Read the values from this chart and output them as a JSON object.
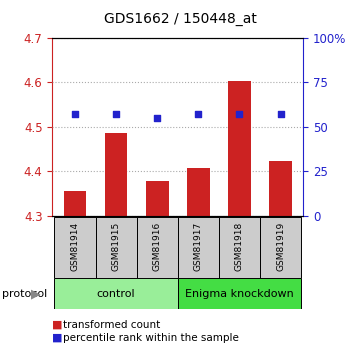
{
  "title": "GDS1662 / 150448_at",
  "samples": [
    "GSM81914",
    "GSM81915",
    "GSM81916",
    "GSM81917",
    "GSM81918",
    "GSM81919"
  ],
  "bar_values": [
    4.355,
    4.485,
    4.378,
    4.408,
    4.603,
    4.422
  ],
  "percentile_values": [
    57,
    57,
    55,
    57,
    57,
    57
  ],
  "ylim_left": [
    4.3,
    4.7
  ],
  "ylim_right": [
    0,
    100
  ],
  "yticks_left": [
    4.3,
    4.4,
    4.5,
    4.6,
    4.7
  ],
  "yticks_right": [
    0,
    25,
    50,
    75,
    100
  ],
  "ytick_labels_right": [
    "0",
    "25",
    "50",
    "75",
    "100%"
  ],
  "bar_color": "#cc2222",
  "scatter_color": "#2222cc",
  "bar_bottom": 4.3,
  "groups": [
    {
      "label": "control",
      "start": 0,
      "end": 3,
      "color": "#99ee99"
    },
    {
      "label": "Enigma knockdown",
      "start": 3,
      "end": 6,
      "color": "#44dd44"
    }
  ],
  "protocol_label": "protocol",
  "legend_items": [
    {
      "color": "#cc2222",
      "label": "transformed count"
    },
    {
      "color": "#2222cc",
      "label": "percentile rank within the sample"
    }
  ],
  "grid_color": "#aaaaaa",
  "sample_box_color": "#cccccc",
  "left_tick_color": "#cc2222",
  "right_tick_color": "#2222cc",
  "title_fontsize": 10,
  "tick_fontsize": 8.5,
  "sample_fontsize": 6.5,
  "group_fontsize": 8,
  "legend_fontsize": 7.5
}
